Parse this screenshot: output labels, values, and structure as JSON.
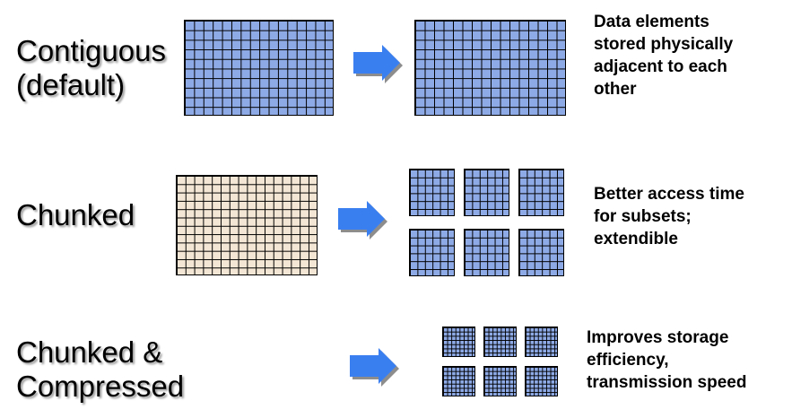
{
  "colors": {
    "grid_blue": "#8eaae6",
    "grid_beige": "#f3e6d4",
    "arrow": "#3a7ff0",
    "arrow_shadow": "#8d8d8d"
  },
  "icons": {
    "arrow": "right-arrow-icon"
  },
  "rows": [
    {
      "label_lines": [
        "Contiguous",
        "(default)"
      ],
      "description_lines": [
        "Data elements",
        "stored physically",
        "adjacent to each",
        "other"
      ]
    },
    {
      "label_lines": [
        "Chunked"
      ],
      "description_lines": [
        "Better access time",
        "for subsets;",
        "extendible"
      ]
    },
    {
      "label_lines": [
        "Chunked &",
        "Compressed"
      ],
      "description_lines": [
        "Improves storage",
        "efficiency,",
        "transmission speed"
      ]
    }
  ]
}
